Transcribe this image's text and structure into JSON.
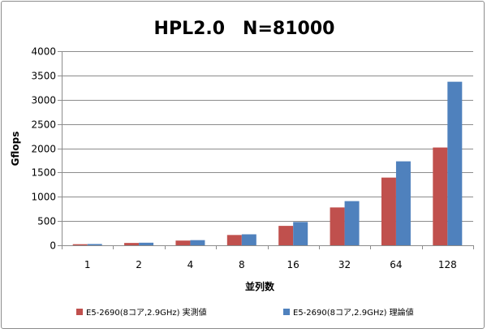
{
  "chart_data": {
    "type": "bar",
    "title": "HPL2.0　N=81000",
    "xlabel": "並列数",
    "ylabel": "Gflops",
    "categories": [
      "1",
      "2",
      "4",
      "8",
      "16",
      "32",
      "64",
      "128"
    ],
    "series": [
      {
        "name": "E5-2690(8コア,2.9GHz) 実測値",
        "color": "#c0504d",
        "values": [
          22,
          48,
          97,
          212,
          400,
          780,
          1395,
          2015
        ]
      },
      {
        "name": "E5-2690(8コア,2.9GHz) 理論値",
        "color": "#4f81bd",
        "values": [
          26,
          53,
          106,
          226,
          480,
          910,
          1730,
          3370
        ]
      }
    ],
    "ylim": [
      0,
      4000
    ],
    "yticks": [
      0,
      500,
      1000,
      1500,
      2000,
      2500,
      3000,
      3500,
      4000
    ],
    "grid": true,
    "legend": "bottom"
  }
}
